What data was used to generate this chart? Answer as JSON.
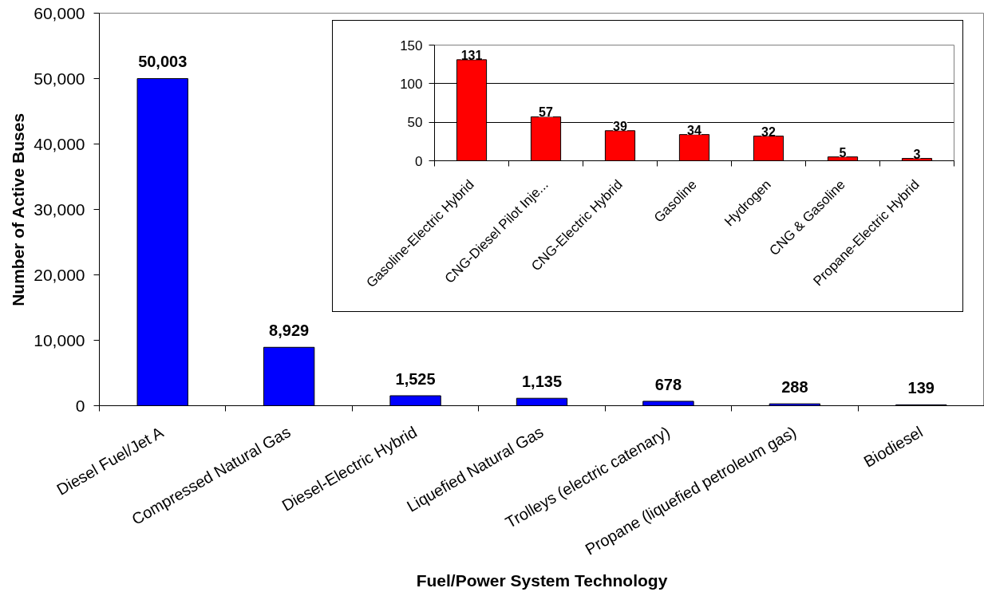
{
  "chart_data": [
    {
      "type": "bar",
      "xlabel": "Fuel/Power System Technology",
      "ylabel": "Number of Active Buses",
      "categories": [
        "Diesel Fuel/Jet A",
        "Compressed Natural Gas",
        "Diesel-Electric Hybrid",
        "Liquefied Natural Gas",
        "Trolleys (electric catenary)",
        "Propane (liquefied petroleum gas)",
        "Biodiesel"
      ],
      "values": [
        50003,
        8929,
        1525,
        1135,
        678,
        288,
        139
      ],
      "value_labels": [
        "50,003",
        "8,929",
        "1,525",
        "1,135",
        "678",
        "288",
        "139"
      ],
      "color": "#0000ff",
      "ylim": [
        0,
        60000
      ],
      "yticks": [
        0,
        {
          "value": 10000,
          "label": "10,000"
        },
        {
          "value": 20000,
          "label": "20,000"
        },
        {
          "value": 30000,
          "label": "30,000"
        },
        {
          "value": 40000,
          "label": "40,000"
        },
        {
          "value": 50000,
          "label": "50,000"
        },
        {
          "value": 60000,
          "label": "60,000"
        }
      ]
    },
    {
      "type": "bar",
      "categories": [
        "Gasoline-Electric Hybrid",
        "CNG-Diesel Pilot Inje...",
        "CNG-Electric Hybrid",
        "Gasoline",
        "Hydrogen",
        "CNG & Gasoline",
        "Propane-Electric Hybrid"
      ],
      "values": [
        131,
        57,
        39,
        34,
        32,
        5,
        3
      ],
      "color": "#ff0000",
      "ylim": [
        0,
        150
      ],
      "yticks": [
        0,
        50,
        100,
        150
      ],
      "grid": "y",
      "data_labels": true
    }
  ]
}
